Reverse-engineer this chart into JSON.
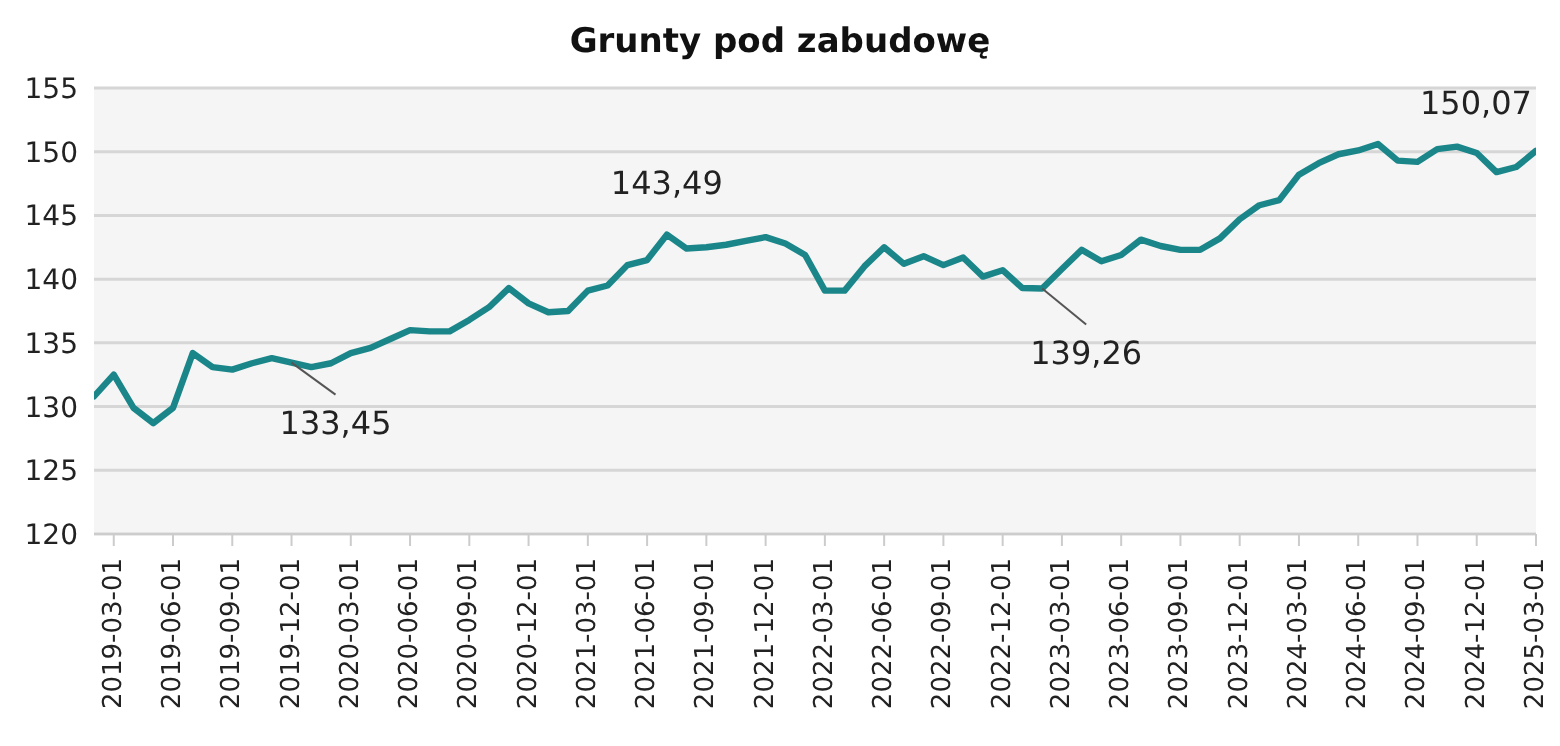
{
  "chart_data": {
    "type": "line",
    "title": "Grunty pod zabudowę",
    "x": [
      "2019-02",
      "2019-03",
      "2019-04",
      "2019-05",
      "2019-06",
      "2019-07",
      "2019-08",
      "2019-09",
      "2019-10",
      "2019-11",
      "2019-12",
      "2020-01",
      "2020-02",
      "2020-03",
      "2020-04",
      "2020-05",
      "2020-06",
      "2020-07",
      "2020-08",
      "2020-09",
      "2020-10",
      "2020-11",
      "2020-12",
      "2021-01",
      "2021-02",
      "2021-03",
      "2021-04",
      "2021-05",
      "2021-06",
      "2021-07",
      "2021-08",
      "2021-09",
      "2021-10",
      "2021-11",
      "2021-12",
      "2022-01",
      "2022-02",
      "2022-03",
      "2022-04",
      "2022-05",
      "2022-06",
      "2022-07",
      "2022-08",
      "2022-09",
      "2022-10",
      "2022-11",
      "2022-12",
      "2023-01",
      "2023-02",
      "2023-03",
      "2023-04",
      "2023-05",
      "2023-06",
      "2023-07",
      "2023-08",
      "2023-09",
      "2023-10",
      "2023-11",
      "2023-12",
      "2024-01",
      "2024-02",
      "2024-03",
      "2024-04",
      "2024-05",
      "2024-06",
      "2024-07",
      "2024-08",
      "2024-09",
      "2024-10",
      "2024-11",
      "2024-12",
      "2025-01",
      "2025-02",
      "2025-03"
    ],
    "series": [
      {
        "color": "#1b8689",
        "values": [
          130.8,
          132.5,
          129.9,
          128.7,
          129.9,
          134.2,
          133.1,
          132.9,
          133.4,
          133.8,
          133.45,
          133.1,
          133.4,
          134.2,
          134.6,
          135.3,
          136.0,
          135.9,
          135.9,
          136.8,
          137.8,
          139.3,
          138.1,
          137.4,
          137.5,
          139.1,
          139.5,
          141.1,
          141.5,
          143.49,
          142.4,
          142.5,
          142.7,
          143.0,
          143.3,
          142.8,
          141.9,
          139.1,
          139.1,
          141.0,
          142.5,
          141.2,
          141.8,
          141.1,
          141.7,
          140.2,
          140.7,
          139.3,
          139.26,
          140.8,
          142.3,
          141.4,
          141.9,
          143.1,
          142.6,
          142.3,
          142.3,
          143.2,
          144.7,
          145.8,
          146.2,
          148.2,
          149.1,
          149.8,
          150.1,
          150.6,
          149.3,
          149.2,
          150.2,
          150.4,
          149.9,
          148.4,
          148.8,
          150.07
        ]
      }
    ],
    "xlim": [
      "2019-02",
      "2025-03"
    ],
    "xticks": [
      {
        "value": "2019-03",
        "label": "2019-03-01"
      },
      {
        "value": "2019-06",
        "label": "2019-06-01"
      },
      {
        "value": "2019-09",
        "label": "2019-09-01"
      },
      {
        "value": "2019-12",
        "label": "2019-12-01"
      },
      {
        "value": "2020-03",
        "label": "2020-03-01"
      },
      {
        "value": "2020-06",
        "label": "2020-06-01"
      },
      {
        "value": "2020-09",
        "label": "2020-09-01"
      },
      {
        "value": "2020-12",
        "label": "2020-12-01"
      },
      {
        "value": "2021-03",
        "label": "2021-03-01"
      },
      {
        "value": "2021-06",
        "label": "2021-06-01"
      },
      {
        "value": "2021-09",
        "label": "2021-09-01"
      },
      {
        "value": "2021-12",
        "label": "2021-12-01"
      },
      {
        "value": "2022-03",
        "label": "2022-03-01"
      },
      {
        "value": "2022-06",
        "label": "2022-06-01"
      },
      {
        "value": "2022-09",
        "label": "2022-09-01"
      },
      {
        "value": "2022-12",
        "label": "2022-12-01"
      },
      {
        "value": "2023-03",
        "label": "2023-03-01"
      },
      {
        "value": "2023-06",
        "label": "2023-06-01"
      },
      {
        "value": "2023-09",
        "label": "2023-09-01"
      },
      {
        "value": "2023-12",
        "label": "2023-12-01"
      },
      {
        "value": "2024-03",
        "label": "2024-03-01"
      },
      {
        "value": "2024-06",
        "label": "2024-06-01"
      },
      {
        "value": "2024-09",
        "label": "2024-09-01"
      },
      {
        "value": "2024-12",
        "label": "2024-12-01"
      },
      {
        "value": "2025-03",
        "label": "2025-03-01"
      }
    ],
    "ylim": [
      120,
      155
    ],
    "yticks": [
      120,
      125,
      130,
      135,
      140,
      145,
      150,
      155
    ],
    "grid": "y",
    "marker": "none",
    "line_style": "solid",
    "annotations": [
      {
        "text": "133,45",
        "x": "2019-12",
        "y": 133.45
      },
      {
        "text": "143,49",
        "x": "2021-07",
        "y": 143.49
      },
      {
        "text": "139,26",
        "x": "2023-02",
        "y": 139.26
      },
      {
        "text": "150,07",
        "x": "2025-03",
        "y": 150.07
      }
    ]
  }
}
